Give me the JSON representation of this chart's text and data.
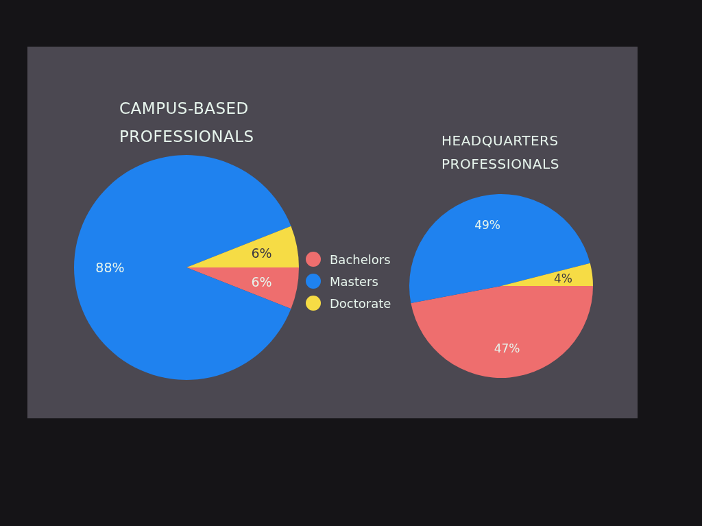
{
  "chart_data": {
    "type": "pie",
    "categories": [
      "Bachelors",
      "Masters",
      "Doctorate"
    ],
    "colors": [
      "#ee6e6e",
      "#1f82ef",
      "#f6dc45"
    ],
    "legend": "right",
    "series": [
      {
        "name": "CAMPUS-BASED PROFESSIONALS",
        "values": [
          6,
          88,
          6
        ],
        "value_labels": [
          "6%",
          "88%",
          "6%"
        ]
      },
      {
        "name": "HEADQUARTERS PROFESSIONALS",
        "values": [
          47,
          49,
          4
        ],
        "value_labels": [
          "47%",
          "49%",
          "4%"
        ]
      }
    ]
  }
}
